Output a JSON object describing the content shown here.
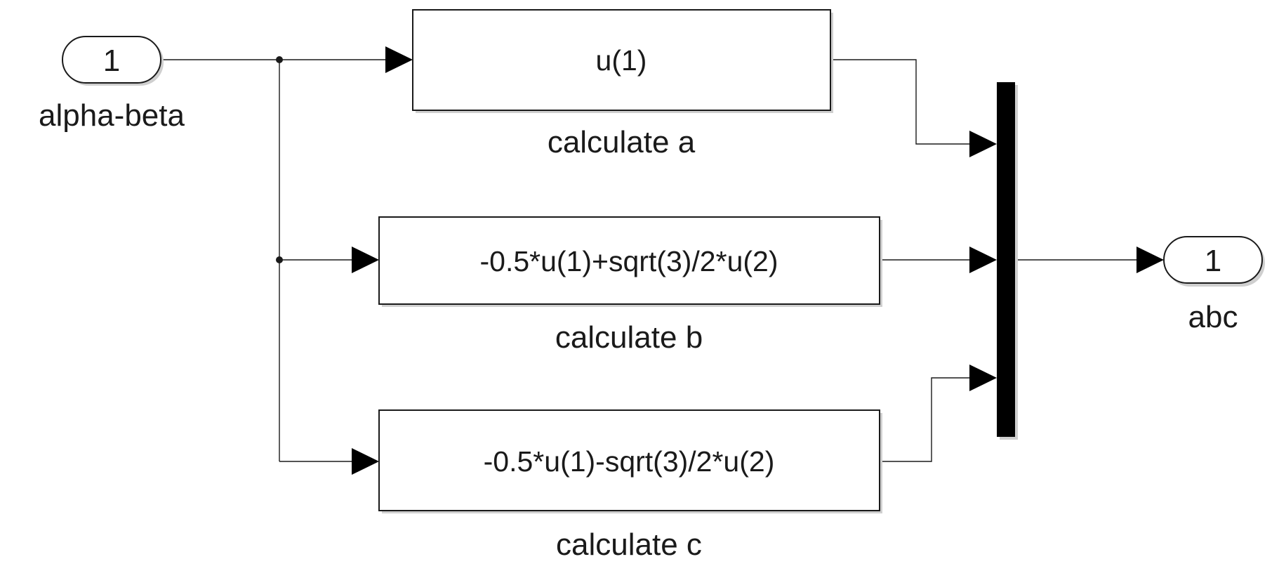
{
  "inport": {
    "number": "1",
    "name": "alpha-beta"
  },
  "outport": {
    "number": "1",
    "name": "abc"
  },
  "blocks": [
    {
      "expression": "u(1)",
      "name": "calculate a"
    },
    {
      "expression": "-0.5*u(1)+sqrt(3)/2*u(2)",
      "name": "calculate b"
    },
    {
      "expression": "-0.5*u(1)-sqrt(3)/2*u(2)",
      "name": "calculate c"
    }
  ],
  "colors": {
    "line": "#1a1a1a",
    "mux": "#000000",
    "background": "#ffffff"
  }
}
